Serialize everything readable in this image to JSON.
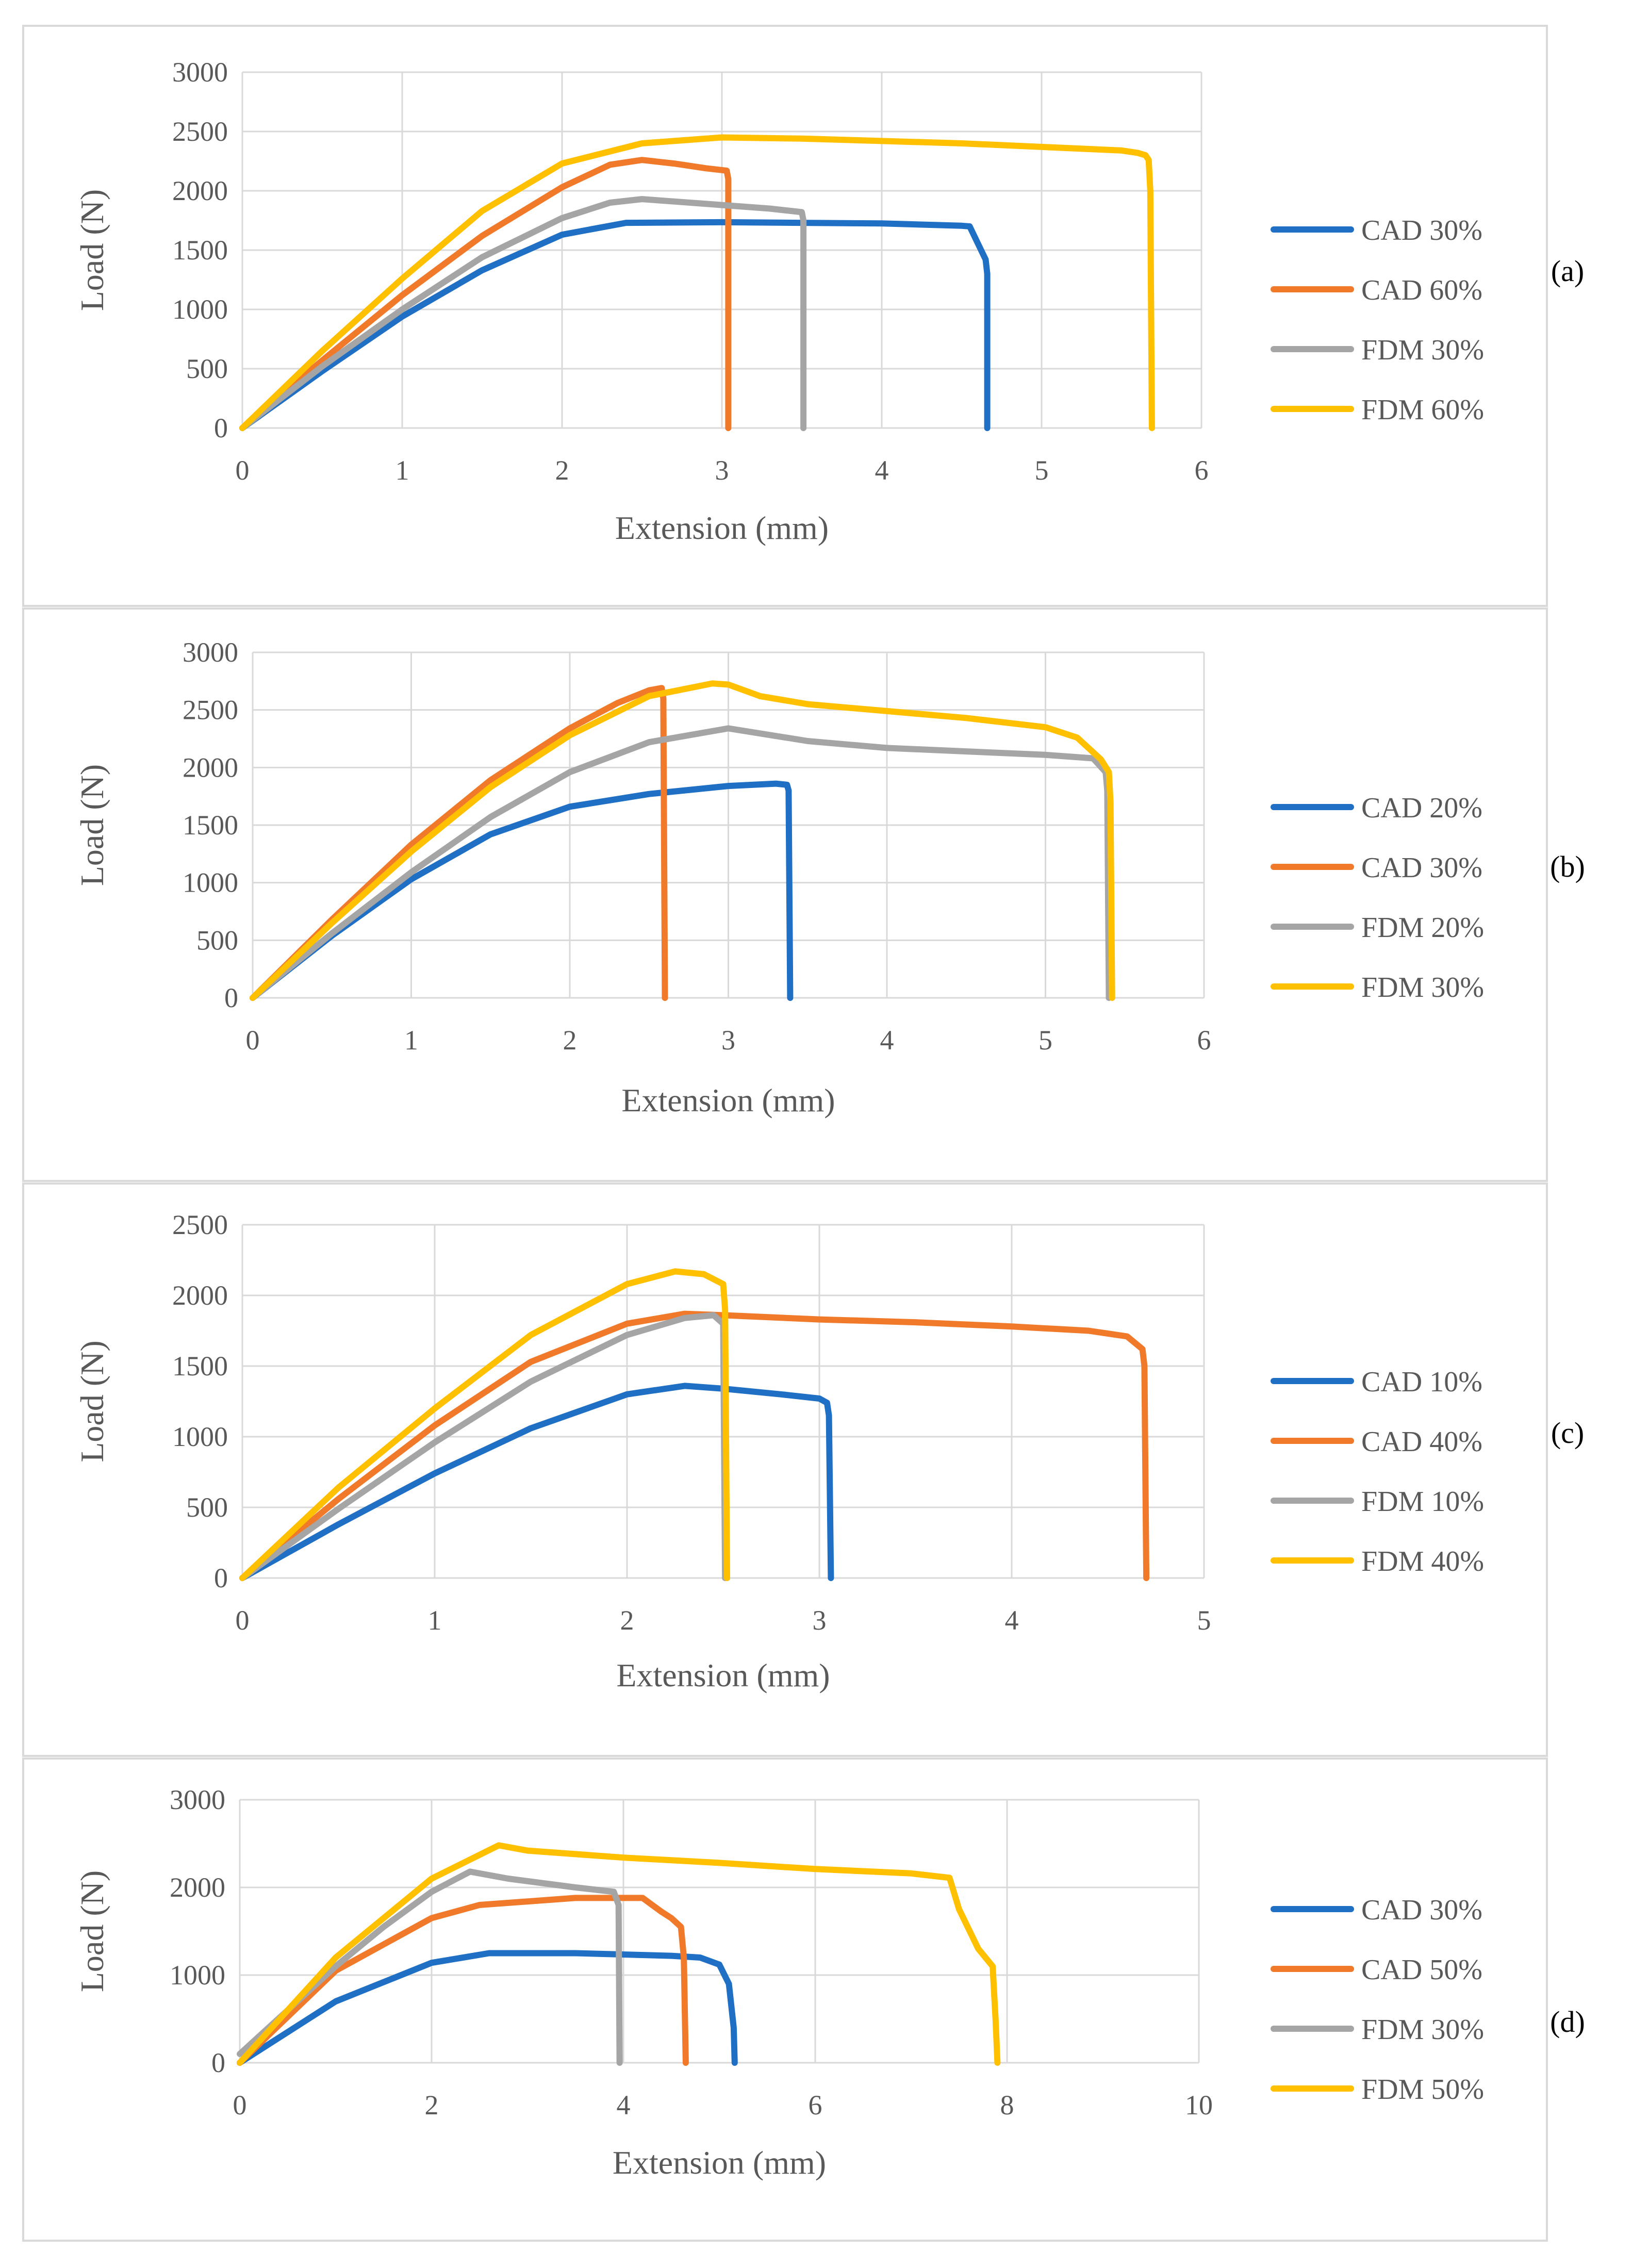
{
  "figure": {
    "name": "Load vs extension curves for CAD and FDM specimens"
  },
  "chart_data": [
    {
      "type": "line",
      "panel_label": "(a)",
      "title": "",
      "xlabel": "Extension (mm)",
      "ylabel": "Load (N)",
      "xlim": [
        0,
        6
      ],
      "ylim": [
        0,
        3000
      ],
      "xticks": [
        "0",
        "1",
        "2",
        "3",
        "4",
        "5",
        "6"
      ],
      "yticks": [
        "0",
        "500",
        "1000",
        "1500",
        "2000",
        "2500",
        "3000"
      ],
      "grid": true,
      "legend_position": "right",
      "series": [
        {
          "name": "CAD 30%",
          "color": "#1f6fc5",
          "x": [
            0,
            0.5,
            1.0,
            1.5,
            2.0,
            2.4,
            3.0,
            3.5,
            4.0,
            4.5,
            4.55,
            4.6,
            4.65,
            4.66,
            4.66
          ],
          "y": [
            0,
            480,
            940,
            1330,
            1630,
            1730,
            1735,
            1730,
            1725,
            1705,
            1700,
            1560,
            1420,
            1300,
            0
          ]
        },
        {
          "name": "CAD 60%",
          "color": "#f07a2a",
          "x": [
            0,
            0.5,
            1.0,
            1.5,
            2.0,
            2.3,
            2.5,
            2.7,
            2.9,
            3.03,
            3.04,
            3.04
          ],
          "y": [
            0,
            570,
            1120,
            1620,
            2030,
            2220,
            2260,
            2230,
            2190,
            2170,
            2100,
            0
          ]
        },
        {
          "name": "FDM 30%",
          "color": "#a5a5a5",
          "x": [
            0,
            0.5,
            1.0,
            1.5,
            2.0,
            2.3,
            2.5,
            2.7,
            3.0,
            3.3,
            3.5,
            3.51,
            3.51
          ],
          "y": [
            0,
            520,
            1000,
            1440,
            1770,
            1900,
            1930,
            1910,
            1880,
            1850,
            1820,
            1750,
            0
          ]
        },
        {
          "name": "FDM 60%",
          "color": "#ffc000",
          "x": [
            0,
            0.5,
            1.0,
            1.5,
            2.0,
            2.5,
            3.0,
            3.5,
            4.0,
            4.5,
            5.0,
            5.5,
            5.6,
            5.65,
            5.67,
            5.68,
            5.69
          ],
          "y": [
            0,
            650,
            1260,
            1830,
            2230,
            2400,
            2450,
            2440,
            2420,
            2400,
            2370,
            2340,
            2320,
            2300,
            2260,
            2000,
            0
          ]
        }
      ]
    },
    {
      "type": "line",
      "panel_label": "(b)",
      "title": "",
      "xlabel": "Extension (mm)",
      "ylabel": "Load (N)",
      "xlim": [
        0,
        6
      ],
      "ylim": [
        0,
        3000
      ],
      "xticks": [
        "0",
        "1",
        "2",
        "3",
        "4",
        "5",
        "6"
      ],
      "yticks": [
        "0",
        "500",
        "1000",
        "1500",
        "2000",
        "2500",
        "3000"
      ],
      "grid": true,
      "legend_position": "right",
      "series": [
        {
          "name": "CAD 20%",
          "color": "#1f6fc5",
          "x": [
            0,
            0.5,
            1.0,
            1.5,
            2.0,
            2.5,
            3.0,
            3.3,
            3.37,
            3.38,
            3.39
          ],
          "y": [
            0,
            540,
            1030,
            1420,
            1660,
            1770,
            1840,
            1860,
            1850,
            1800,
            0
          ]
        },
        {
          "name": "CAD 30%",
          "color": "#f07a2a",
          "x": [
            0,
            0.5,
            1.0,
            1.5,
            2.0,
            2.3,
            2.5,
            2.58,
            2.59,
            2.6
          ],
          "y": [
            0,
            680,
            1330,
            1890,
            2340,
            2560,
            2670,
            2690,
            2600,
            0
          ]
        },
        {
          "name": "FDM 20%",
          "color": "#a5a5a5",
          "x": [
            0,
            0.5,
            1.0,
            1.5,
            2.0,
            2.5,
            3.0,
            3.5,
            4.0,
            4.5,
            5.0,
            5.3,
            5.38,
            5.39,
            5.4
          ],
          "y": [
            0,
            560,
            1090,
            1570,
            1960,
            2220,
            2340,
            2230,
            2170,
            2140,
            2110,
            2080,
            1960,
            1800,
            0
          ]
        },
        {
          "name": "FDM 30%",
          "color": "#ffc000",
          "x": [
            0,
            0.5,
            1.0,
            1.5,
            2.0,
            2.5,
            2.9,
            3.0,
            3.2,
            3.5,
            4.0,
            4.5,
            5.0,
            5.2,
            5.35,
            5.4,
            5.41,
            5.42
          ],
          "y": [
            0,
            650,
            1270,
            1830,
            2280,
            2620,
            2730,
            2720,
            2620,
            2550,
            2490,
            2430,
            2350,
            2260,
            2070,
            1960,
            1700,
            0
          ]
        }
      ]
    },
    {
      "type": "line",
      "panel_label": "(c)",
      "title": "",
      "xlabel": "Extension (mm)",
      "ylabel": "Load (N)",
      "xlim": [
        0,
        5
      ],
      "ylim": [
        0,
        2500
      ],
      "xticks": [
        "0",
        "1",
        "2",
        "3",
        "4",
        "5"
      ],
      "yticks": [
        "0",
        "500",
        "1000",
        "1500",
        "2000",
        "2500"
      ],
      "grid": true,
      "legend_position": "right",
      "series": [
        {
          "name": "CAD 10%",
          "color": "#1f6fc5",
          "x": [
            0,
            0.5,
            1.0,
            1.5,
            2.0,
            2.3,
            2.5,
            2.8,
            3.0,
            3.04,
            3.05,
            3.06
          ],
          "y": [
            0,
            380,
            740,
            1060,
            1300,
            1360,
            1340,
            1300,
            1270,
            1240,
            1150,
            0
          ]
        },
        {
          "name": "CAD 40%",
          "color": "#f07a2a",
          "x": [
            0,
            0.5,
            1.0,
            1.5,
            2.0,
            2.3,
            2.5,
            3.0,
            3.5,
            4.0,
            4.4,
            4.6,
            4.68,
            4.69,
            4.7
          ],
          "y": [
            0,
            560,
            1080,
            1530,
            1800,
            1870,
            1860,
            1830,
            1810,
            1780,
            1750,
            1710,
            1620,
            1500,
            0
          ]
        },
        {
          "name": "FDM 10%",
          "color": "#a5a5a5",
          "x": [
            0,
            0.5,
            1.0,
            1.5,
            2.0,
            2.3,
            2.45,
            2.5,
            2.51
          ],
          "y": [
            0,
            490,
            960,
            1390,
            1720,
            1840,
            1860,
            1800,
            0
          ]
        },
        {
          "name": "FDM 40%",
          "color": "#ffc000",
          "x": [
            0,
            0.5,
            1.0,
            1.5,
            2.0,
            2.25,
            2.4,
            2.5,
            2.51,
            2.52
          ],
          "y": [
            0,
            640,
            1200,
            1720,
            2080,
            2170,
            2150,
            2080,
            1900,
            0
          ]
        }
      ]
    },
    {
      "type": "line",
      "panel_label": "(d)",
      "title": "",
      "xlabel": "Extension (mm)",
      "ylabel": "Load (N)",
      "xlim": [
        0,
        10
      ],
      "ylim": [
        0,
        3000
      ],
      "xticks": [
        "0",
        "2",
        "4",
        "6",
        "8",
        "10"
      ],
      "yticks": [
        "0",
        "1000",
        "2000",
        "3000"
      ],
      "grid": true,
      "legend_position": "right",
      "series": [
        {
          "name": "CAD 30%",
          "color": "#1f6fc5",
          "x": [
            0,
            1.0,
            2.0,
            2.6,
            3.5,
            4.5,
            4.8,
            5.0,
            5.1,
            5.15,
            5.16
          ],
          "y": [
            0,
            700,
            1140,
            1250,
            1250,
            1220,
            1200,
            1120,
            900,
            400,
            0
          ]
        },
        {
          "name": "CAD 50%",
          "color": "#f07a2a",
          "x": [
            0,
            1.0,
            2.0,
            2.5,
            3.5,
            4.2,
            4.4,
            4.5,
            4.6,
            4.63,
            4.65
          ],
          "y": [
            0,
            1050,
            1650,
            1800,
            1880,
            1880,
            1720,
            1650,
            1550,
            1200,
            0
          ]
        },
        {
          "name": "FDM 30%",
          "color": "#a5a5a5",
          "x": [
            0,
            0.5,
            1.0,
            1.5,
            2.0,
            2.4,
            2.8,
            3.5,
            3.9,
            3.95,
            3.96
          ],
          "y": [
            100,
            600,
            1100,
            1550,
            1950,
            2180,
            2100,
            2000,
            1950,
            1800,
            0
          ]
        },
        {
          "name": "FDM 50%",
          "color": "#ffc000",
          "x": [
            0,
            1.0,
            2.0,
            2.7,
            3.0,
            4.0,
            5.0,
            6.0,
            7.0,
            7.4,
            7.5,
            7.7,
            7.85,
            7.88,
            7.9
          ],
          "y": [
            0,
            1200,
            2100,
            2480,
            2420,
            2340,
            2280,
            2210,
            2160,
            2110,
            1750,
            1300,
            1100,
            500,
            0
          ]
        }
      ]
    }
  ]
}
